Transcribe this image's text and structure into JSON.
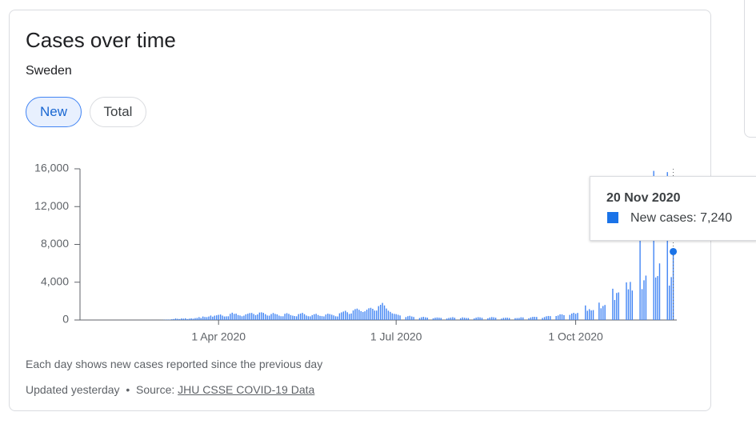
{
  "chart_data": {
    "type": "bar",
    "title": "Cases over time",
    "subtitle": "Sweden",
    "color": "#4285f4",
    "xlim": [
      "2020-01-21",
      "2020-11-21"
    ],
    "xticks": [
      {
        "value": "2020-04-01",
        "label": "1 Apr 2020"
      },
      {
        "value": "2020-07-01",
        "label": "1 Jul 2020"
      },
      {
        "value": "2020-10-01",
        "label": "1 Oct 2020"
      }
    ],
    "ylim": [
      0,
      16000
    ],
    "yticks": [
      0,
      {
        "value": 4000,
        "label": "4,000"
      },
      {
        "value": 8000,
        "label": "8,000"
      },
      {
        "value": 12000,
        "label": "12,000"
      },
      {
        "value": 16000,
        "label": "16,000"
      }
    ],
    "x": [
      "2020-01-22",
      "2020-01-23",
      "2020-01-24",
      "2020-01-25",
      "2020-01-26",
      "2020-01-27",
      "2020-01-28",
      "2020-01-29",
      "2020-01-30",
      "2020-01-31",
      "2020-02-01",
      "2020-02-02",
      "2020-02-03",
      "2020-02-04",
      "2020-02-05",
      "2020-02-06",
      "2020-02-07",
      "2020-02-08",
      "2020-02-09",
      "2020-02-10",
      "2020-02-11",
      "2020-02-12",
      "2020-02-13",
      "2020-02-14",
      "2020-02-15",
      "2020-02-16",
      "2020-02-17",
      "2020-02-18",
      "2020-02-19",
      "2020-02-20",
      "2020-02-21",
      "2020-02-22",
      "2020-02-23",
      "2020-02-24",
      "2020-02-25",
      "2020-02-26",
      "2020-02-27",
      "2020-02-28",
      "2020-02-29",
      "2020-03-01",
      "2020-03-02",
      "2020-03-03",
      "2020-03-04",
      "2020-03-05",
      "2020-03-06",
      "2020-03-07",
      "2020-03-08",
      "2020-03-09",
      "2020-03-10",
      "2020-03-11",
      "2020-03-12",
      "2020-03-13",
      "2020-03-14",
      "2020-03-15",
      "2020-03-16",
      "2020-03-17",
      "2020-03-18",
      "2020-03-19",
      "2020-03-20",
      "2020-03-21",
      "2020-03-22",
      "2020-03-23",
      "2020-03-24",
      "2020-03-25",
      "2020-03-26",
      "2020-03-27",
      "2020-03-28",
      "2020-03-29",
      "2020-03-30",
      "2020-03-31",
      "2020-04-01",
      "2020-04-02",
      "2020-04-03",
      "2020-04-04",
      "2020-04-05",
      "2020-04-06",
      "2020-04-07",
      "2020-04-08",
      "2020-04-09",
      "2020-04-10",
      "2020-04-11",
      "2020-04-12",
      "2020-04-13",
      "2020-04-14",
      "2020-04-15",
      "2020-04-16",
      "2020-04-17",
      "2020-04-18",
      "2020-04-19",
      "2020-04-20",
      "2020-04-21",
      "2020-04-22",
      "2020-04-23",
      "2020-04-24",
      "2020-04-25",
      "2020-04-26",
      "2020-04-27",
      "2020-04-28",
      "2020-04-29",
      "2020-04-30",
      "2020-05-01",
      "2020-05-02",
      "2020-05-03",
      "2020-05-04",
      "2020-05-05",
      "2020-05-06",
      "2020-05-07",
      "2020-05-08",
      "2020-05-09",
      "2020-05-10",
      "2020-05-11",
      "2020-05-12",
      "2020-05-13",
      "2020-05-14",
      "2020-05-15",
      "2020-05-16",
      "2020-05-17",
      "2020-05-18",
      "2020-05-19",
      "2020-05-20",
      "2020-05-21",
      "2020-05-22",
      "2020-05-23",
      "2020-05-24",
      "2020-05-25",
      "2020-05-26",
      "2020-05-27",
      "2020-05-28",
      "2020-05-29",
      "2020-05-30",
      "2020-05-31",
      "2020-06-01",
      "2020-06-02",
      "2020-06-03",
      "2020-06-04",
      "2020-06-05",
      "2020-06-06",
      "2020-06-07",
      "2020-06-08",
      "2020-06-09",
      "2020-06-10",
      "2020-06-11",
      "2020-06-12",
      "2020-06-13",
      "2020-06-14",
      "2020-06-15",
      "2020-06-16",
      "2020-06-17",
      "2020-06-18",
      "2020-06-19",
      "2020-06-20",
      "2020-06-21",
      "2020-06-22",
      "2020-06-23",
      "2020-06-24",
      "2020-06-25",
      "2020-06-26",
      "2020-06-27",
      "2020-06-28",
      "2020-06-29",
      "2020-06-30",
      "2020-07-01",
      "2020-07-02",
      "2020-07-03",
      "2020-07-04",
      "2020-07-05",
      "2020-07-06",
      "2020-07-07",
      "2020-07-08",
      "2020-07-09",
      "2020-07-10",
      "2020-07-11",
      "2020-07-12",
      "2020-07-13",
      "2020-07-14",
      "2020-07-15",
      "2020-07-16",
      "2020-07-17",
      "2020-07-18",
      "2020-07-19",
      "2020-07-20",
      "2020-07-21",
      "2020-07-22",
      "2020-07-23",
      "2020-07-24",
      "2020-07-25",
      "2020-07-26",
      "2020-07-27",
      "2020-07-28",
      "2020-07-29",
      "2020-07-30",
      "2020-07-31",
      "2020-08-01",
      "2020-08-02",
      "2020-08-03",
      "2020-08-04",
      "2020-08-05",
      "2020-08-06",
      "2020-08-07",
      "2020-08-08",
      "2020-08-09",
      "2020-08-10",
      "2020-08-11",
      "2020-08-12",
      "2020-08-13",
      "2020-08-14",
      "2020-08-15",
      "2020-08-16",
      "2020-08-17",
      "2020-08-18",
      "2020-08-19",
      "2020-08-20",
      "2020-08-21",
      "2020-08-22",
      "2020-08-23",
      "2020-08-24",
      "2020-08-25",
      "2020-08-26",
      "2020-08-27",
      "2020-08-28",
      "2020-08-29",
      "2020-08-30",
      "2020-08-31",
      "2020-09-01",
      "2020-09-02",
      "2020-09-03",
      "2020-09-04",
      "2020-09-05",
      "2020-09-06",
      "2020-09-07",
      "2020-09-08",
      "2020-09-09",
      "2020-09-10",
      "2020-09-11",
      "2020-09-12",
      "2020-09-13",
      "2020-09-14",
      "2020-09-15",
      "2020-09-16",
      "2020-09-17",
      "2020-09-18",
      "2020-09-19",
      "2020-09-20",
      "2020-09-21",
      "2020-09-22",
      "2020-09-23",
      "2020-09-24",
      "2020-09-25",
      "2020-09-26",
      "2020-09-27",
      "2020-09-28",
      "2020-09-29",
      "2020-09-30",
      "2020-10-01",
      "2020-10-02",
      "2020-10-03",
      "2020-10-04",
      "2020-10-05",
      "2020-10-06",
      "2020-10-07",
      "2020-10-08",
      "2020-10-09",
      "2020-10-10",
      "2020-10-11",
      "2020-10-12",
      "2020-10-13",
      "2020-10-14",
      "2020-10-15",
      "2020-10-16",
      "2020-10-17",
      "2020-10-18",
      "2020-10-19",
      "2020-10-20",
      "2020-10-21",
      "2020-10-22",
      "2020-10-23",
      "2020-10-24",
      "2020-10-25",
      "2020-10-26",
      "2020-10-27",
      "2020-10-28",
      "2020-10-29",
      "2020-10-30",
      "2020-10-31",
      "2020-11-01",
      "2020-11-02",
      "2020-11-03",
      "2020-11-04",
      "2020-11-05",
      "2020-11-06",
      "2020-11-07",
      "2020-11-08",
      "2020-11-09",
      "2020-11-10",
      "2020-11-11",
      "2020-11-12",
      "2020-11-13",
      "2020-11-14",
      "2020-11-15",
      "2020-11-16",
      "2020-11-17",
      "2020-11-18",
      "2020-11-19",
      "2020-11-20"
    ],
    "values": [
      0,
      0,
      0,
      0,
      0,
      0,
      0,
      0,
      0,
      1,
      0,
      0,
      0,
      0,
      0,
      0,
      0,
      0,
      0,
      0,
      0,
      0,
      0,
      0,
      0,
      0,
      0,
      0,
      0,
      0,
      0,
      0,
      0,
      0,
      1,
      5,
      1,
      3,
      1,
      2,
      3,
      8,
      20,
      36,
      46,
      35,
      75,
      103,
      159,
      128,
      101,
      165,
      145,
      183,
      101,
      141,
      174,
      141,
      198,
      223,
      303,
      224,
      371,
      320,
      307,
      370,
      471,
      354,
      457,
      495,
      548,
      579,
      466,
      374,
      387,
      396,
      653,
      773,
      648,
      672,
      522,
      476,
      397,
      458,
      598,
      661,
      732,
      745,
      635,
      506,
      591,
      790,
      812,
      756,
      614,
      476,
      462,
      630,
      742,
      643,
      595,
      464,
      401,
      396,
      658,
      723,
      648,
      523,
      460,
      419,
      395,
      626,
      684,
      756,
      620,
      475,
      402,
      386,
      521,
      611,
      654,
      527,
      436,
      412,
      383,
      579,
      668,
      628,
      563,
      487,
      398,
      375,
      710,
      808,
      895,
      977,
      820,
      638,
      689,
      1008,
      1149,
      1206,
      1079,
      932,
      850,
      920,
      1090,
      1240,
      1290,
      1185,
      1002,
      996,
      1470,
      1610,
      1810,
      1540,
      1217,
      984,
      860,
      705,
      650,
      620,
      552,
      480,
      0,
      0,
      311,
      398,
      446,
      375,
      321,
      0,
      0,
      210,
      293,
      335,
      287,
      252,
      0,
      0,
      181,
      240,
      268,
      249,
      220,
      0,
      0,
      156,
      218,
      260,
      301,
      243,
      0,
      0,
      190,
      278,
      243,
      211,
      206,
      0,
      0,
      166,
      253,
      301,
      280,
      235,
      0,
      0,
      181,
      264,
      309,
      290,
      247,
      0,
      0,
      148,
      225,
      241,
      245,
      212,
      0,
      0,
      195,
      207,
      214,
      288,
      276,
      0,
      0,
      186,
      273,
      330,
      336,
      324,
      0,
      0,
      218,
      308,
      392,
      426,
      412,
      0,
      0,
      422,
      478,
      602,
      593,
      514,
      0,
      0,
      541,
      680,
      760,
      658,
      750,
      0,
      0,
      0,
      1540,
      980,
      1148,
      1014,
      1050,
      0,
      0,
      1840,
      1240,
      1480,
      1590,
      0,
      0,
      0,
      3310,
      2120,
      2860,
      2920,
      0,
      0,
      0,
      3980,
      3250,
      4030,
      3120,
      0,
      0,
      0,
      11060,
      3270,
      4200,
      4700,
      0,
      0,
      0,
      15780,
      4500,
      4650,
      5990,
      0,
      0,
      0,
      15650,
      3640,
      4540,
      7240
    ],
    "tooltip": {
      "title": "20 Nov 2020",
      "label": "New cases: 7,240"
    }
  },
  "buttons": [
    "New",
    "Total"
  ],
  "note": "Each day shows new cases reported since the previous day",
  "footer": {
    "updated": "Updated yesterday",
    "separator": "•",
    "source_label": "Source:",
    "source_link": "JHU CSSE COVID-19 Data"
  }
}
